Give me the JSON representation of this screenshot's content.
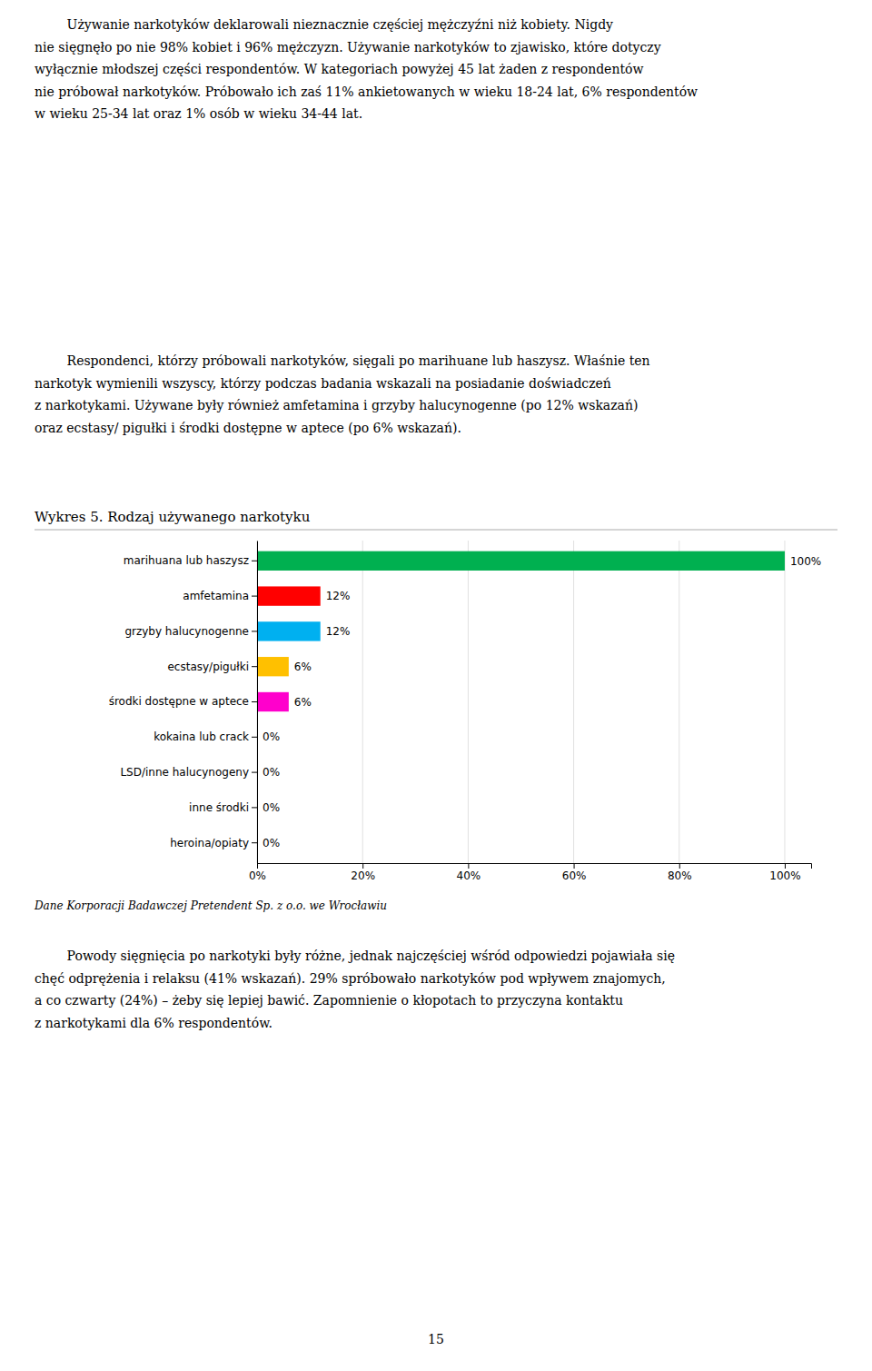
{
  "chart_data": {
    "type": "bar",
    "orientation": "horizontal",
    "title": "Wykres 5. Rodzaj używanego narkotyku",
    "categories": [
      "heroina/opiaty",
      "inne środki",
      "LSD/inne halucynogeny",
      "kokaina lub crack",
      "środki dostępne w aptece",
      "ecstasy/pigułki",
      "grzyby halucynogenne",
      "amfetamina",
      "marihuana lub haszysz"
    ],
    "values": [
      0,
      0,
      0,
      0,
      6,
      6,
      12,
      12,
      100
    ],
    "value_labels": [
      "0%",
      "0%",
      "0%",
      "0%",
      "6%",
      "6%",
      "12%",
      "12%",
      "100%"
    ],
    "data_labels": true,
    "colors": [
      "#4472C4",
      "#7F7F7F",
      "#4472C4",
      "#C07020",
      "#FF00CC",
      "#FFC000",
      "#00B0F0",
      "#FF0000",
      "#00B050"
    ],
    "xlim": [
      0,
      105
    ],
    "xticks": [
      {
        "value": 0,
        "label": "0%"
      },
      {
        "value": 20,
        "label": "20%"
      },
      {
        "value": 40,
        "label": "40%"
      },
      {
        "value": 60,
        "label": "60%"
      },
      {
        "value": 80,
        "label": "80%"
      },
      {
        "value": 100,
        "label": "100%"
      }
    ],
    "grid": true
  },
  "body_text_top": "        Używanie narkotyków deklarowali nieznacznie częściej mężczyźni niż kobiety. Nigdy\nnie sięgnęło po nie 98% kobiet i 96% mężczyzn. Używanie narkotyków to zjawisko, które dotyczy\nwyłącznie młodszej części respondentów. W kategoriach powyżej 45 lat żaden z respondentów\nnie próbował narkotyków. Próbowało ich zaś 11% ankietowanych w wieku 18-24 lat, 6% respondentów\nw wieku 25-34 lat oraz 1% osób w wieku 34-44 lat.",
  "body_text_middle": "        Respondenci, którzy próbowali narkotyków, sięgali po marihuane lub haszysz. Właśnie ten\nnarkotyk wymienili wszyscy, którzy podczas badania wskazali na posiadanie doświadczeń\nz narkotykami. Używane były również amfetamina i grzyby halucynogenne (po 12% wskazań)\noraz ecstasy/ pigułki i środki dostępne w aptece (po 6% wskazań).",
  "source": "Dane Korporacji Badawczej Pretendent Sp. z o.o. we Wrocławiu",
  "body_text_bottom": "        Powody sięgnięcia po narkotyki były różne, jednak najczęściej wśród odpowiedzi pojawiała się\nchęć odprężenia i relaksu (41% wskazań). 29% spróbowało narkotyków pod wpływem znajomych,\na co czwarty (24%) – żeby się lepiej bawić. Zapomnienie o kłopotach to przyczyna kontaktu\nz narkotykami dla 6% respondentów.",
  "page_number": "15"
}
